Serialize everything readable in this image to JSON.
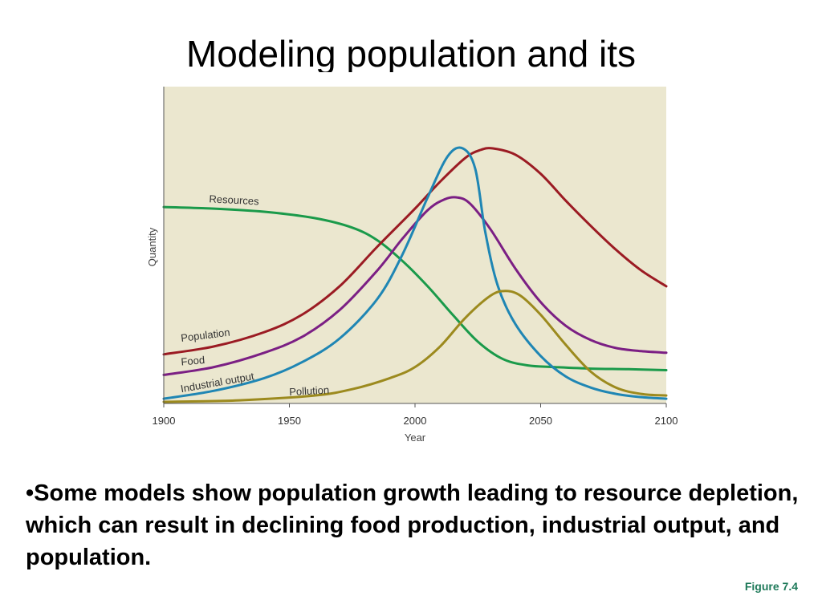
{
  "slide": {
    "title": "Modeling population and its",
    "bullet_marker": "•",
    "bullet_text": "Some models show population growth leading to resource depletion, which can result in declining food production, industrial output, and population.",
    "figure_label": "Figure 7.4"
  },
  "chart_data": {
    "type": "line",
    "title": "",
    "xlabel": "Year",
    "ylabel": "Quantity",
    "xlim": [
      1900,
      2100
    ],
    "ylim": [
      0,
      100
    ],
    "x_ticks": [
      1900,
      1950,
      2000,
      2050,
      2100
    ],
    "grid": false,
    "background": "#ebe7cf",
    "series": [
      {
        "name": "Resources",
        "color": "#1a9a4a",
        "x": [
          1900,
          1920,
          1940,
          1960,
          1975,
          1985,
          1995,
          2005,
          2015,
          2025,
          2035,
          2045,
          2055,
          2070,
          2085,
          2100
        ],
        "y": [
          62,
          61.5,
          60.5,
          58.5,
          55.5,
          51.5,
          45,
          37,
          28,
          19.5,
          14,
          12,
          11.5,
          11,
          10.8,
          10.5
        ]
      },
      {
        "name": "Population",
        "color": "#9b1b23",
        "x": [
          1900,
          1920,
          1940,
          1955,
          1970,
          1985,
          2000,
          2010,
          2020,
          2026,
          2031,
          2040,
          2050,
          2060,
          2070,
          2080,
          2090,
          2100
        ],
        "y": [
          15.5,
          18,
          22.5,
          28,
          37,
          49.5,
          61.5,
          70,
          77.5,
          80,
          80.5,
          78.5,
          72.5,
          64,
          56,
          48.5,
          42,
          37
        ]
      },
      {
        "name": "Food",
        "color": "#7b1f84",
        "x": [
          1900,
          1920,
          1940,
          1955,
          1970,
          1985,
          1995,
          2005,
          2012,
          2017,
          2022,
          2030,
          2040,
          2050,
          2060,
          2070,
          2080,
          2090,
          2100
        ],
        "y": [
          9,
          11.5,
          16,
          21,
          29.5,
          42,
          52,
          61,
          64.5,
          65,
          63,
          55,
          42.5,
          32,
          24.5,
          20,
          17.5,
          16.5,
          16
        ]
      },
      {
        "name": "Industrial output",
        "color": "#1f86b4",
        "x": [
          1900,
          1920,
          1940,
          1955,
          1970,
          1985,
          1995,
          2005,
          2013,
          2019,
          2024,
          2028,
          2033,
          2040,
          2050,
          2060,
          2070,
          2080,
          2090,
          2100
        ],
        "y": [
          1.5,
          4,
          8,
          13,
          20.5,
          33,
          47,
          65,
          78,
          80.5,
          74,
          54,
          37,
          25,
          15,
          8.5,
          5,
          3,
          2,
          1.5
        ]
      },
      {
        "name": "Pollution",
        "color": "#9c8a1e",
        "x": [
          1900,
          1930,
          1960,
          1975,
          1990,
          2000,
          2010,
          2020,
          2030,
          2036,
          2042,
          2050,
          2060,
          2070,
          2080,
          2090,
          2100
        ],
        "y": [
          0.5,
          1,
          2.5,
          4.5,
          8,
          11.5,
          18,
          27,
          34,
          35.5,
          34,
          28,
          18.5,
          10,
          5,
          3,
          2.5
        ]
      }
    ]
  }
}
